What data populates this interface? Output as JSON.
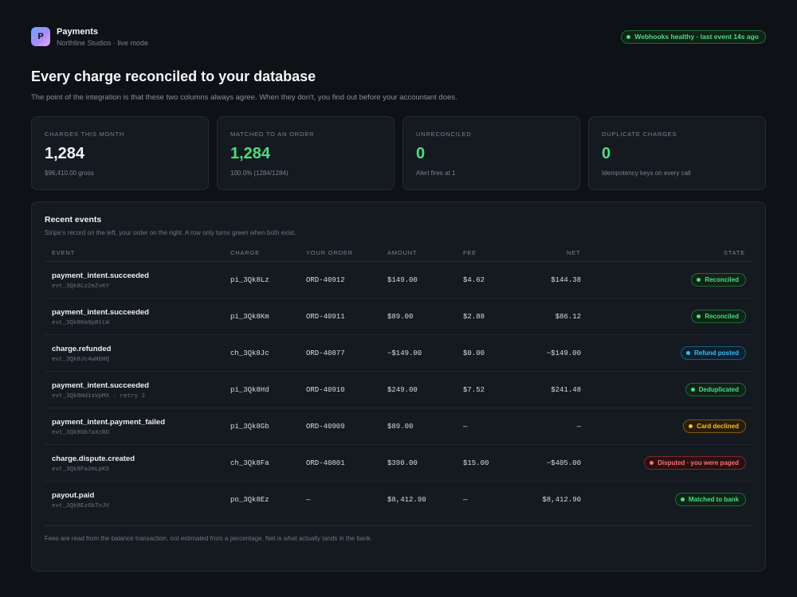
{
  "app": {
    "icon_letter": "P",
    "title": "Payments",
    "subtitle": "Northline Studios · live mode"
  },
  "webhook_status": {
    "text": "Webhooks healthy · last event 14s ago",
    "color": "#4ade80"
  },
  "page": {
    "headline": "Every charge reconciled to your database",
    "subhead": "The point of the integration is that these two columns always agree. When they don't, you find out before your accountant does."
  },
  "stats": [
    {
      "label": "CHARGES THIS MONTH",
      "value": "1,284",
      "note": "$96,410.00 gross"
    },
    {
      "label": "MATCHED TO AN ORDER",
      "value": "1,284",
      "note": "100.0% (1284/1284)"
    },
    {
      "label": "UNRECONCILED",
      "value": "0",
      "note": "Alert fires at 1"
    },
    {
      "label": "DUPLICATE CHARGES",
      "value": "0",
      "note": "Idempotency keys on every call"
    }
  ],
  "events": {
    "title": "Recent events",
    "subtitle": "Stripe's record on the left, your order on the right. A row only turns green when both exist.",
    "columns": {
      "event": "EVENT",
      "charge": "CHARGE",
      "order": "YOUR ORDER",
      "amount": "AMOUNT",
      "fee": "FEE",
      "net": "NET",
      "state": "STATE"
    },
    "rows": [
      {
        "event": "payment_intent.succeeded",
        "id": "evt_3Qk8Lz2eZvKY",
        "charge": "pi_3Qk8Lz",
        "order": "ORD-40912",
        "amount": "$149.00",
        "fee": "$4.62",
        "net": "$144.38",
        "state": "Reconciled",
        "state_color": "green"
      },
      {
        "event": "payment_intent.succeeded",
        "id": "evt_3Qk8Km9pRtLW",
        "charge": "pi_3Qk8Km",
        "order": "ORD-40911",
        "amount": "$89.00",
        "fee": "$2.88",
        "net": "$86.12",
        "state": "Reconciled",
        "state_color": "green"
      },
      {
        "event": "charge.refunded",
        "id": "evt_3Qk8Jc4wNbHQ",
        "charge": "ch_3Qk8Jc",
        "order": "ORD-40877",
        "amount": "−$149.00",
        "fee": "$0.00",
        "net": "−$149.00",
        "state": "Refund posted",
        "state_color": "cyan"
      },
      {
        "event": "payment_intent.succeeded",
        "id": "evt_3Qk8Hd1sVpMX · retry 2",
        "charge": "pi_3Qk8Hd",
        "order": "ORD-40910",
        "amount": "$249.00",
        "fee": "$7.52",
        "net": "$241.48",
        "state": "Deduplicated",
        "state_color": "green"
      },
      {
        "event": "payment_intent.payment_failed",
        "id": "evt_3Qk8Gb7aXcRD",
        "charge": "pi_3Qk8Gb",
        "order": "ORD-40909",
        "amount": "$89.00",
        "fee": "—",
        "net": "—",
        "state": "Card declined",
        "state_color": "amber"
      },
      {
        "event": "charge.dispute.created",
        "id": "evt_3Qk8Fa2mLpKS",
        "charge": "ch_3Qk8Fa",
        "order": "ORD-40801",
        "amount": "$390.00",
        "fee": "$15.00",
        "net": "−$405.00",
        "state": "Disputed · you were paged",
        "state_color": "red"
      },
      {
        "event": "payout.paid",
        "id": "evt_3Qk8Ez6bTnJV",
        "charge": "po_3Qk8Ez",
        "order": "—",
        "amount": "$8,412.90",
        "fee": "—",
        "net": "$8,412.90",
        "state": "Matched to bank",
        "state_color": "green"
      }
    ],
    "footnote": "Fees are read from the balance transaction, not estimated from a percentage. Net is what actually lands in the bank."
  }
}
